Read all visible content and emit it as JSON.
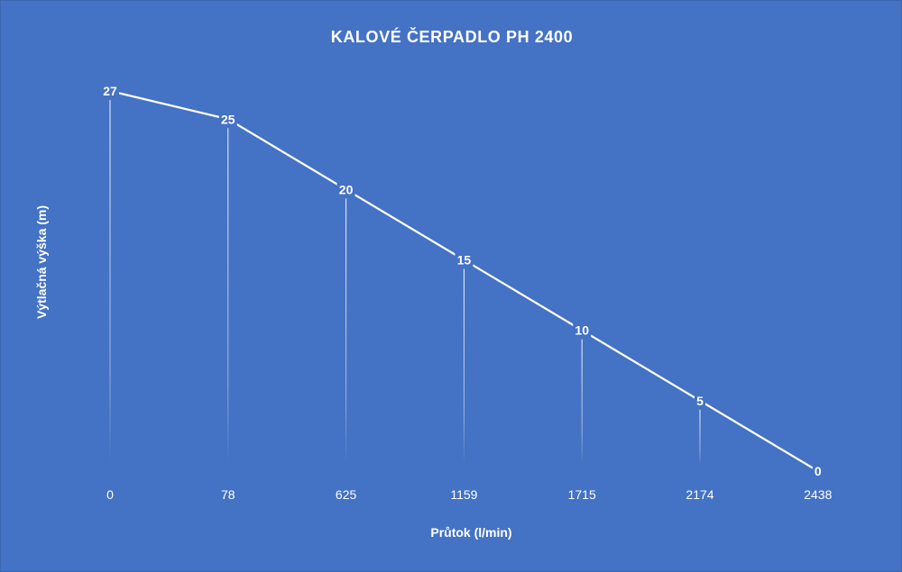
{
  "chart_data": {
    "type": "line",
    "title": "KALOVÉ ČERPADLO PH 2400",
    "xlabel": "Průtok (l/min)",
    "ylabel": "Výtlačná výška (m)",
    "categories": [
      "0",
      "78",
      "625",
      "1159",
      "1715",
      "2174",
      "2438"
    ],
    "series": [
      {
        "values": [
          27,
          25,
          20,
          15,
          10,
          5,
          0
        ]
      }
    ],
    "ylim": [
      0,
      27
    ],
    "grid": false,
    "drop_lines": true,
    "data_labels": true,
    "colors": {
      "background": "#4472c4",
      "line": "#ffffff",
      "drop_line": "#ffffff",
      "text": "#ffffff"
    }
  }
}
